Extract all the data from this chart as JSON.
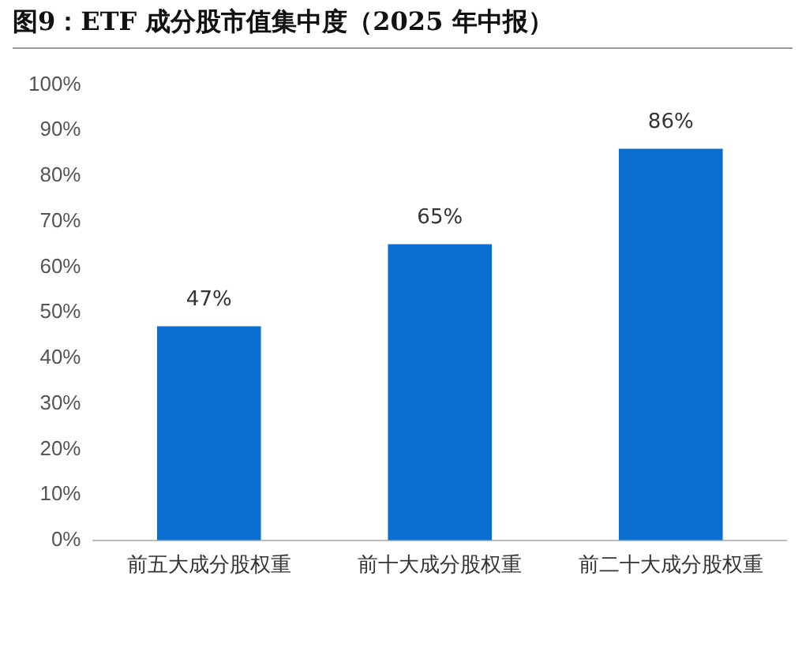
{
  "chart_data": {
    "type": "bar",
    "title": "图9：ETF 成分股市值集中度（2025 年中报）",
    "categories": [
      "前五大成分股权重",
      "前十大成分股权重",
      "前二十大成分股权重"
    ],
    "values": [
      47,
      65,
      86
    ],
    "value_labels": [
      "47%",
      "65%",
      "86%"
    ],
    "color": "#0a6fd0",
    "ylim": [
      0,
      100
    ],
    "yticks": [
      {
        "value": 0,
        "label": "0%"
      },
      {
        "value": 10,
        "label": "10%"
      },
      {
        "value": 20,
        "label": "20%"
      },
      {
        "value": 30,
        "label": "30%"
      },
      {
        "value": 40,
        "label": "40%"
      },
      {
        "value": 50,
        "label": "50%"
      },
      {
        "value": 60,
        "label": "60%"
      },
      {
        "value": 70,
        "label": "70%"
      },
      {
        "value": 80,
        "label": "80%"
      },
      {
        "value": 90,
        "label": "90%"
      },
      {
        "value": 100,
        "label": "100%"
      }
    ],
    "grid": false,
    "legend": false
  }
}
